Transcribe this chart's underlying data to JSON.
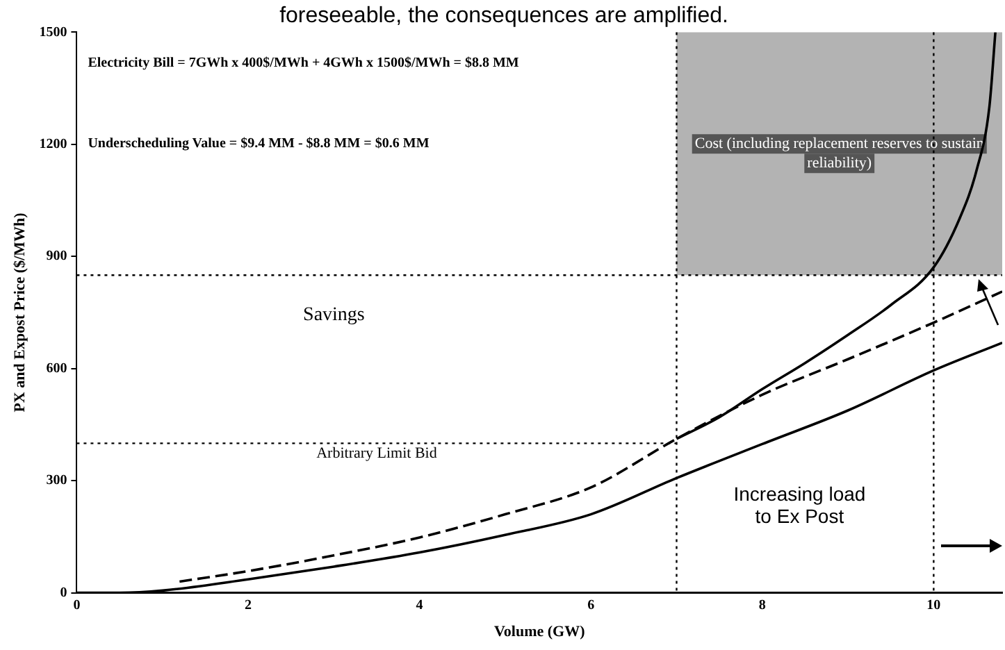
{
  "chart_data": {
    "type": "line",
    "title": "foreseeable, the consequences are amplified.",
    "xlabel": "Volume (GW)",
    "ylabel": "PX and Expost Price ($/MWh)",
    "xlim": [
      0,
      10.8
    ],
    "xticks": [
      0,
      2,
      4,
      6,
      8,
      10
    ],
    "ylim": [
      0,
      1500
    ],
    "yticks": [
      0,
      300,
      600,
      900,
      1200,
      1500
    ],
    "grid": false,
    "legend": false,
    "marker": "none",
    "series": [
      {
        "type": "line",
        "color": "#000000",
        "line_style": "solid",
        "x": [
          0,
          0.5,
          1,
          2,
          3,
          4,
          5,
          6,
          7,
          8,
          9,
          10,
          10.8
        ],
        "values": [
          0,
          0,
          6,
          36,
          70,
          108,
          155,
          210,
          307,
          398,
          488,
          595,
          669
        ]
      },
      {
        "type": "line",
        "color": "#000000",
        "line_style": "dashed",
        "x": [
          1.2,
          2,
          3,
          4,
          5,
          6,
          7,
          8,
          9,
          10,
          10.8
        ],
        "values": [
          30,
          58,
          100,
          148,
          210,
          282,
          412,
          530,
          625,
          723,
          806
        ]
      },
      {
        "type": "line",
        "color": "#000000",
        "line_style": "solid",
        "x": [
          7,
          7.5,
          8,
          8.5,
          9,
          9.5,
          10,
          10.3,
          10.5,
          10.65,
          10.72
        ],
        "values": [
          412,
          470,
          545,
          615,
          690,
          770,
          871,
          1000,
          1130,
          1300,
          1500
        ]
      }
    ],
    "ref_lines": [
      {
        "axis": "y",
        "value": 400,
        "label": "Arbitrary Limit Bid",
        "line_style": "dotted"
      },
      {
        "axis": "y",
        "value": 850,
        "line_style": "dotted"
      },
      {
        "axis": "x",
        "value": 7,
        "line_style": "dotted"
      },
      {
        "axis": "x",
        "value": 10,
        "line_style": "dotted"
      }
    ],
    "bands": [
      {
        "axis": "y",
        "from": 850,
        "to": 1500,
        "label": "Cost (including replacement reserves to sustain reliability)",
        "color": "#9a9a9a"
      }
    ],
    "annotations": [
      "Electricity Bill = 7GWh x 400$/MWh + 4GWh x 1500$/MWh = $8.8 MM",
      "Underscheduling Value = $9.4 MM - $8.8 MM = $0.6 MM",
      "Savings",
      "Increasing load to Ex Post"
    ]
  }
}
